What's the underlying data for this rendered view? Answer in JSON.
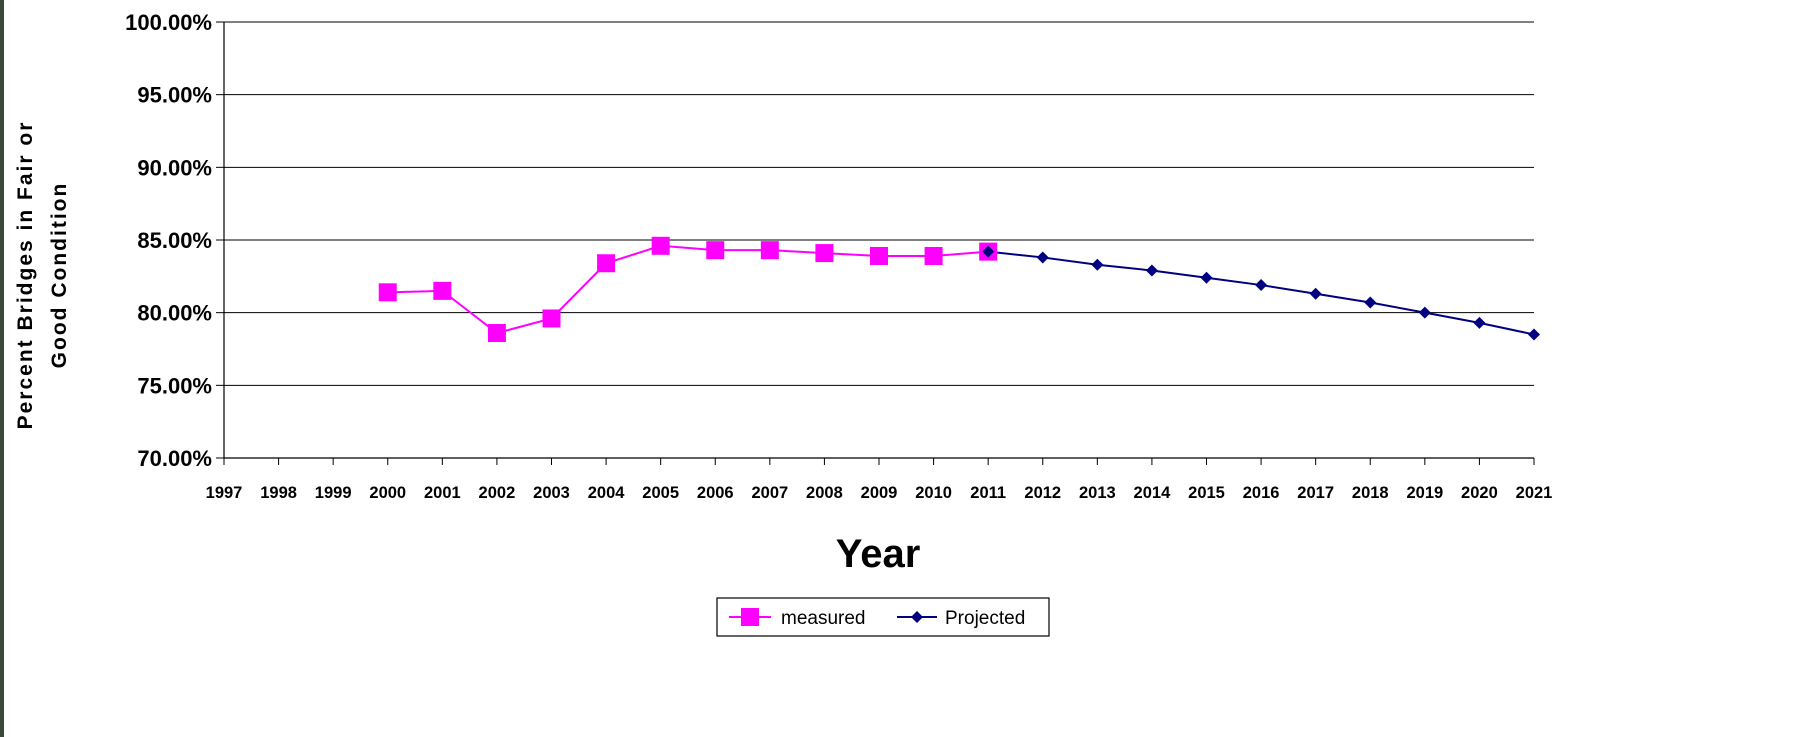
{
  "chart_data": {
    "type": "line",
    "title": "",
    "xlabel": "Year",
    "ylabel_line1": "Percent Bridges in Fair or",
    "ylabel_line2": "Good Condition",
    "x": [
      "1997",
      "1998",
      "1999",
      "2000",
      "2001",
      "2002",
      "2003",
      "2004",
      "2005",
      "2006",
      "2007",
      "2008",
      "2009",
      "2010",
      "2011",
      "2012",
      "2013",
      "2014",
      "2015",
      "2016",
      "2017",
      "2018",
      "2019",
      "2020",
      "2021"
    ],
    "y_ticks": [
      "70.00%",
      "75.00%",
      "80.00%",
      "85.00%",
      "90.00%",
      "95.00%",
      "100.00%"
    ],
    "ylim": [
      70,
      100
    ],
    "grid": true,
    "legend_position": "bottom",
    "series": [
      {
        "name": "measured",
        "color": "#ff00ff",
        "marker": "square",
        "x": [
          "2000",
          "2001",
          "2002",
          "2003",
          "2004",
          "2005",
          "2006",
          "2007",
          "2008",
          "2009",
          "2010",
          "2011"
        ],
        "values": [
          81.4,
          81.5,
          78.6,
          79.6,
          83.4,
          84.6,
          84.3,
          84.3,
          84.1,
          83.9,
          83.9,
          84.2
        ]
      },
      {
        "name": "Projected",
        "color": "#000080",
        "marker": "diamond",
        "x": [
          "2011",
          "2012",
          "2013",
          "2014",
          "2015",
          "2016",
          "2017",
          "2018",
          "2019",
          "2020",
          "2021"
        ],
        "values": [
          84.2,
          83.8,
          83.3,
          82.9,
          82.4,
          81.9,
          81.3,
          80.7,
          80.0,
          79.3,
          78.5
        ]
      }
    ]
  }
}
